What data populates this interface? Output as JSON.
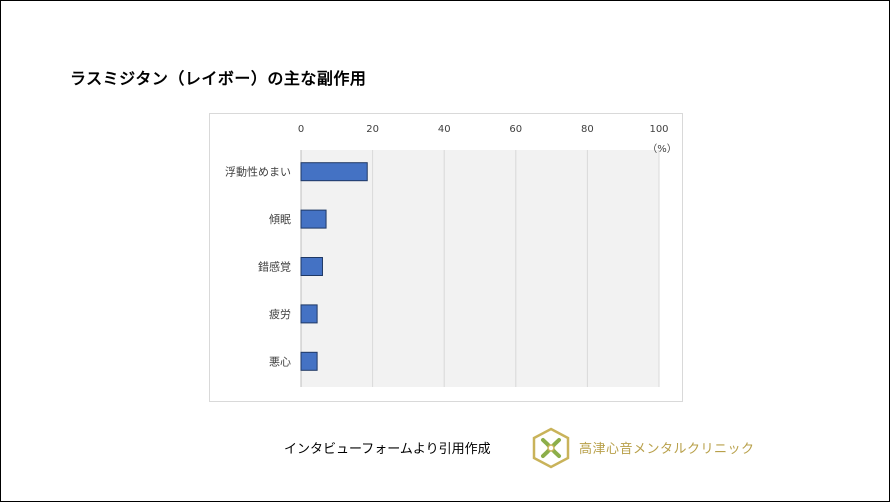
{
  "slide": {
    "title": "ラスミジタン（レイボー）の主な副作用",
    "source": "インタビューフォームより引用作成",
    "brand": {
      "name": "高津心音メンタルクリニック",
      "color": "#b8a04a",
      "logo_icon": "hexagon-knot-logo"
    }
  },
  "chart_data": {
    "type": "bar",
    "orientation": "horizontal",
    "categories": [
      "浮動性めまい",
      "傾眠",
      "錯感覚",
      "疲労",
      "悪心"
    ],
    "values": [
      18.5,
      7,
      6,
      4.5,
      4.5
    ],
    "x_ticks": [
      "0",
      "20",
      "40",
      "60",
      "80",
      "100"
    ],
    "xlim": [
      0,
      100
    ],
    "unit_label": "（%）",
    "grid": true,
    "colors": {
      "bar": "#4472c4",
      "bar_border": "#1f3864",
      "plot_bg": "#f2f2f2",
      "grid": "#d9d9d9"
    }
  }
}
